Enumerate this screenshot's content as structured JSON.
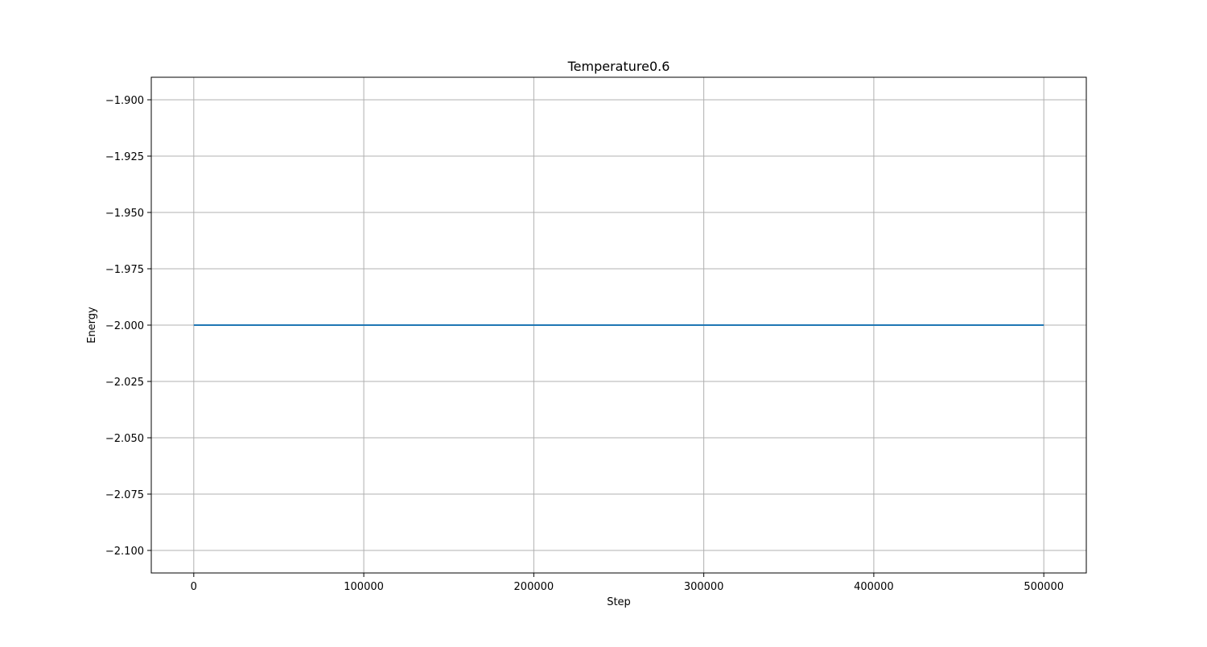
{
  "chart_data": {
    "type": "line",
    "title": "Temperature0.6",
    "xlabel": "Step",
    "ylabel": "Energy",
    "xlim": [
      -25000,
      525000
    ],
    "ylim": [
      -2.11,
      -1.89
    ],
    "x_ticks": [
      0,
      100000,
      200000,
      300000,
      400000,
      500000
    ],
    "x_tick_labels": [
      "0",
      "100000",
      "200000",
      "300000",
      "400000",
      "500000"
    ],
    "y_ticks": [
      -1.9,
      -1.925,
      -1.95,
      -1.975,
      -2.0,
      -2.025,
      -2.05,
      -2.075,
      -2.1
    ],
    "y_tick_labels": [
      "−1.900",
      "−1.925",
      "−1.950",
      "−1.975",
      "−2.000",
      "−2.025",
      "−2.050",
      "−2.075",
      "−2.100"
    ],
    "grid": true,
    "series": [
      {
        "color": "#1f77b4",
        "x": [
          0,
          100000,
          200000,
          300000,
          400000,
          500000
        ],
        "y": [
          -2.0,
          -2.0,
          -2.0,
          -2.0,
          -2.0,
          -2.0
        ]
      }
    ]
  }
}
